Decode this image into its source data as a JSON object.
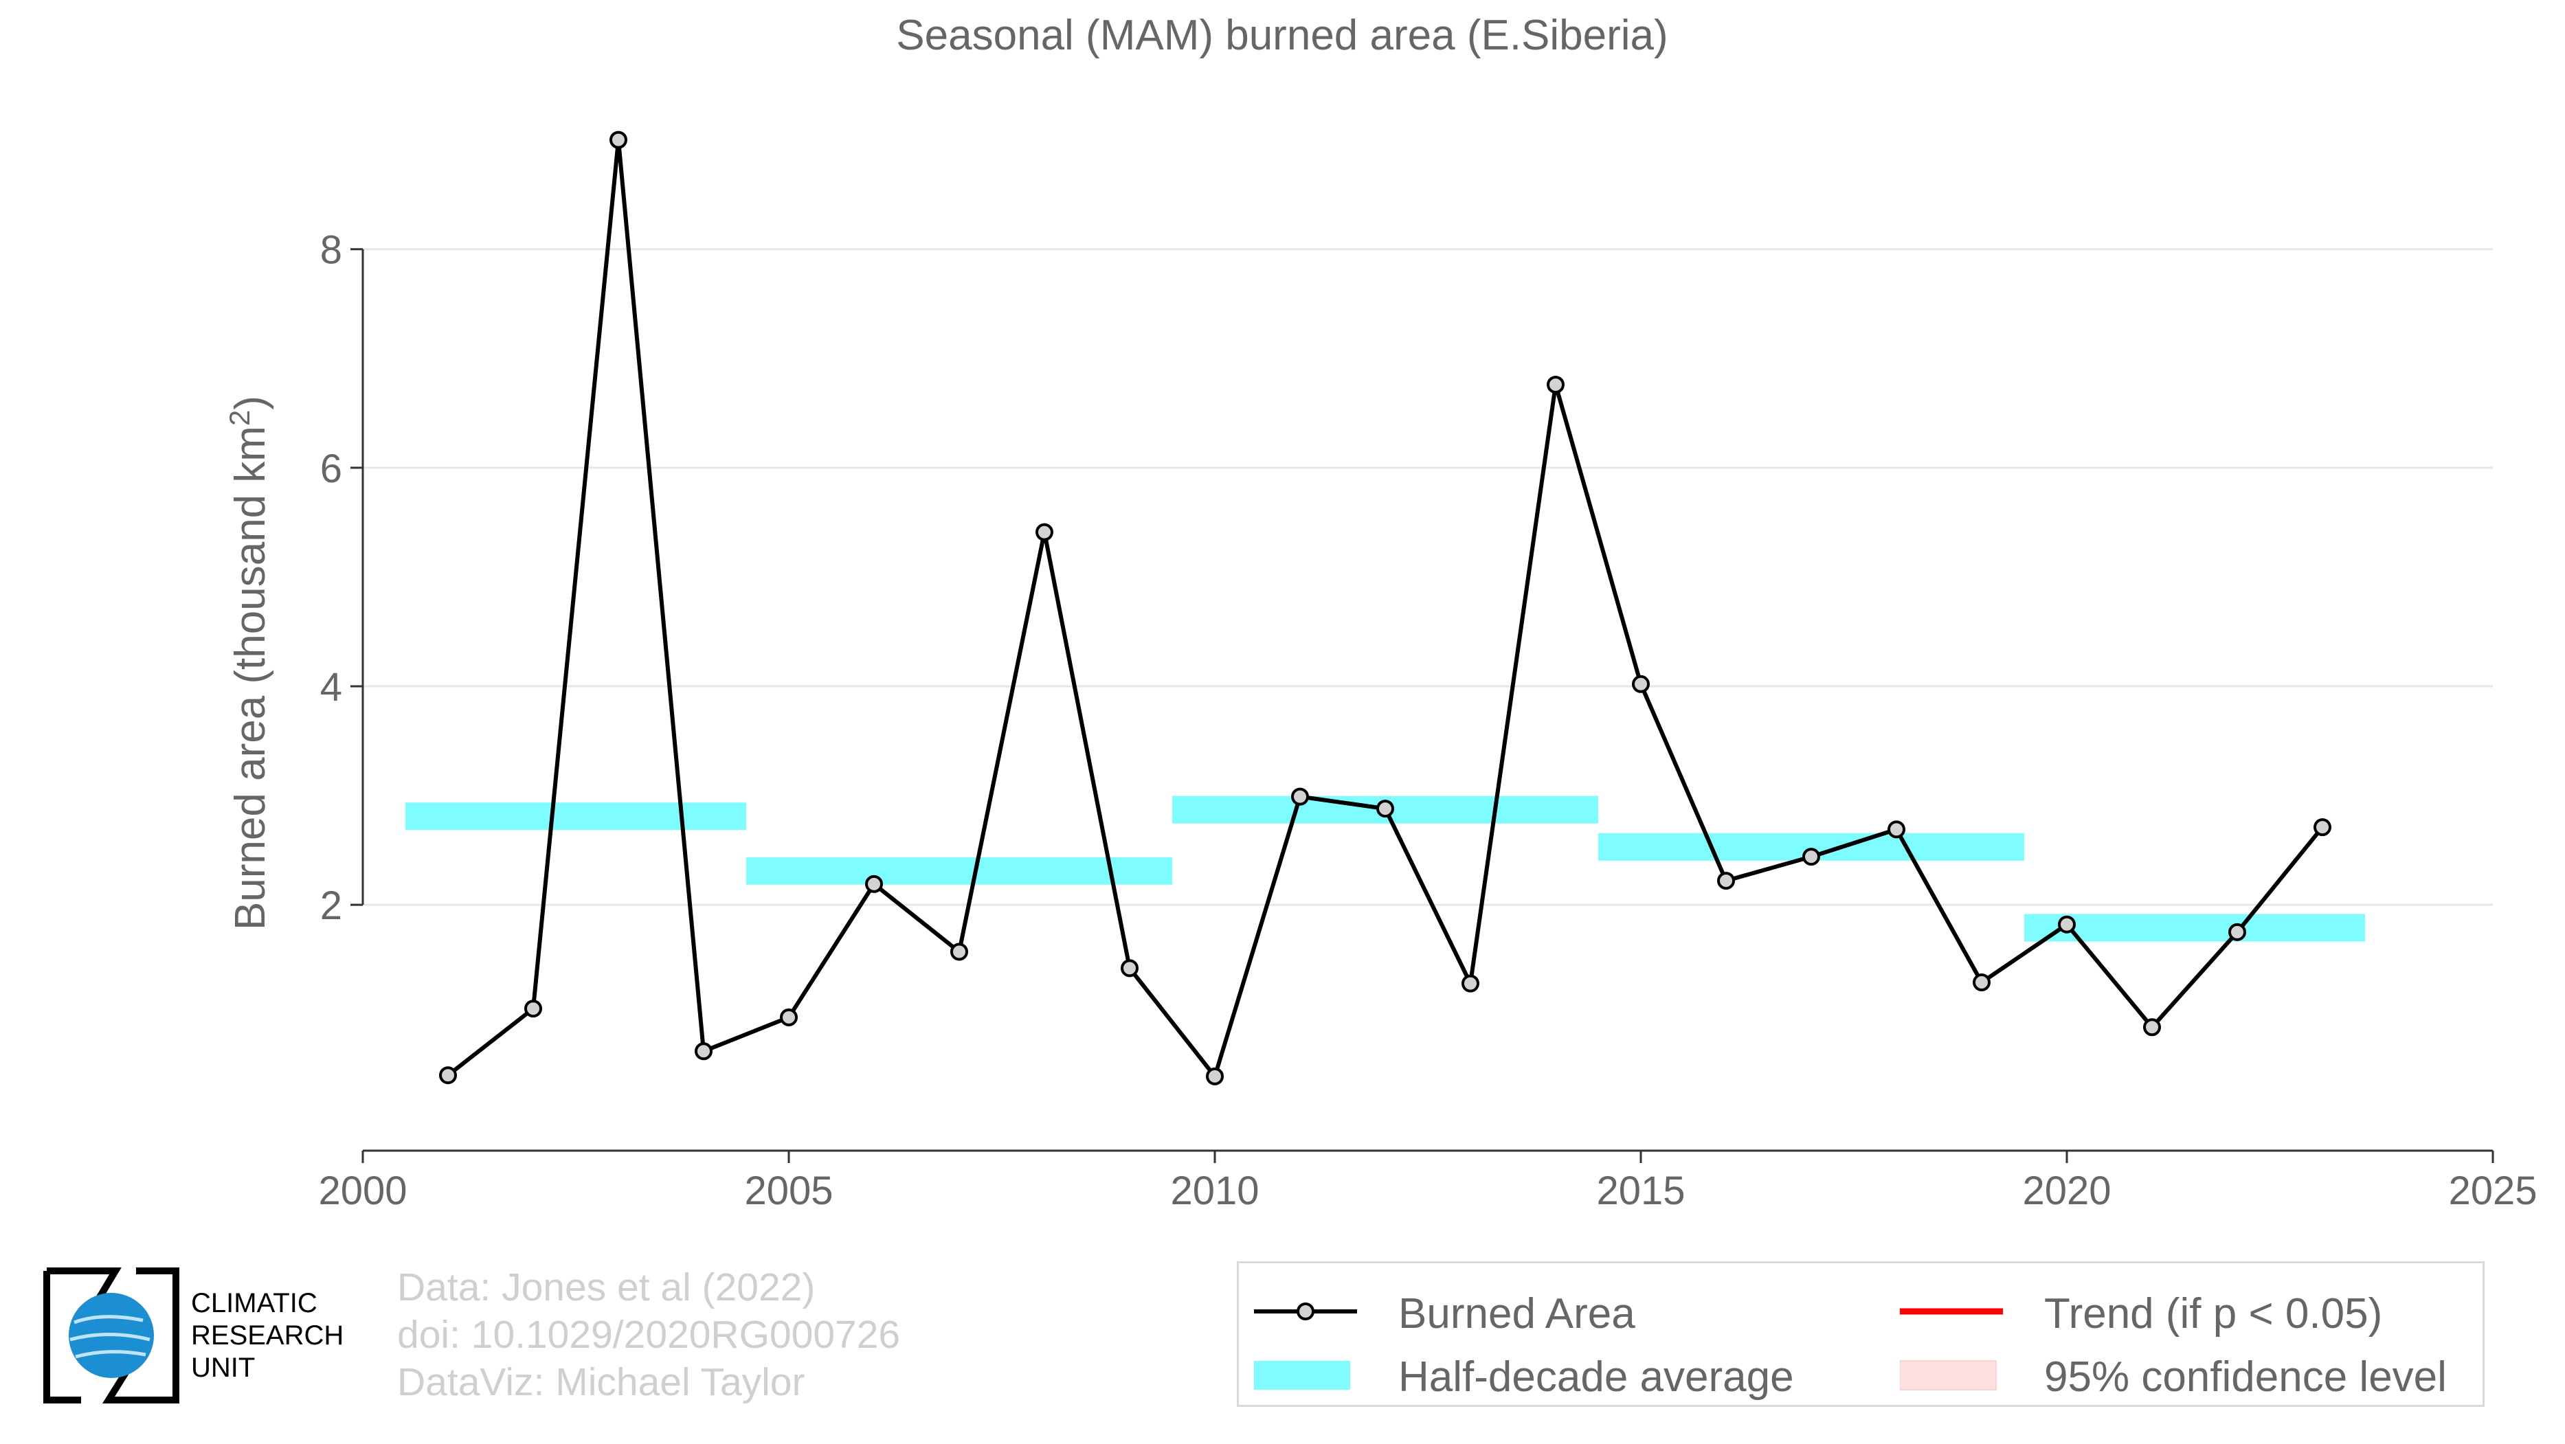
{
  "chart_data": {
    "type": "line",
    "title": "Seasonal (MAM) burned area (E.Siberia)",
    "ylabel": "Burned area (thousand km",
    "ylabel_superscript": "2",
    "ylabel_close": ")",
    "xlim": [
      2000,
      2025
    ],
    "ylim": [
      -0.25,
      9.4
    ],
    "x_ticks": [
      2000,
      2005,
      2010,
      2015,
      2020,
      2025
    ],
    "y_ticks": [
      2,
      4,
      6,
      8
    ],
    "grid": "horizontal",
    "series": [
      {
        "name": "Burned Area",
        "color": "#000000",
        "marker_fill": "#d3d3d3",
        "x": [
          2001,
          2002,
          2003,
          2004,
          2005,
          2006,
          2007,
          2008,
          2009,
          2010,
          2011,
          2012,
          2013,
          2014,
          2015,
          2016,
          2017,
          2018,
          2019,
          2020,
          2021,
          2022,
          2023
        ],
        "y": [
          0.44,
          1.05,
          9.0,
          0.66,
          0.97,
          2.19,
          1.57,
          5.41,
          1.42,
          0.43,
          2.99,
          2.88,
          1.28,
          6.76,
          4.02,
          2.22,
          2.44,
          2.69,
          1.29,
          1.82,
          0.88,
          1.75,
          2.71
        ]
      },
      {
        "name": "Half-decade average",
        "color": "#7ffcff",
        "segments": [
          {
            "x0": 2000.5,
            "x1": 2004.5,
            "y": 2.81
          },
          {
            "x0": 2004.5,
            "x1": 2009.5,
            "y": 2.31
          },
          {
            "x0": 2009.5,
            "x1": 2014.5,
            "y": 2.87
          },
          {
            "x0": 2014.5,
            "x1": 2019.5,
            "y": 2.53
          },
          {
            "x0": 2019.5,
            "x1": 2023.5,
            "y": 1.79
          }
        ]
      }
    ],
    "legend": {
      "placement": "bottom-right",
      "items": [
        {
          "label": "Burned Area",
          "key": "line-marker",
          "color": "#000000"
        },
        {
          "label": "Trend (if p < 0.05)",
          "key": "line",
          "color": "#ff0000"
        },
        {
          "label": "Half-decade average",
          "key": "band",
          "color": "#7ffcff"
        },
        {
          "label": "95% confidence level",
          "key": "band",
          "color": "#ffe0e0"
        }
      ]
    }
  },
  "credits": {
    "line1": "Data: Jones et al (2022)",
    "line2": "doi: 10.1029/2020RG000726",
    "line3": "DataViz: Michael Taylor"
  },
  "logo": {
    "line1": "CLIMATIC",
    "line2": "RESEARCH",
    "line3": "UNIT"
  },
  "colors": {
    "text": "#666666",
    "grid": "#e6e6e6",
    "credits": "#cfcfcf"
  }
}
